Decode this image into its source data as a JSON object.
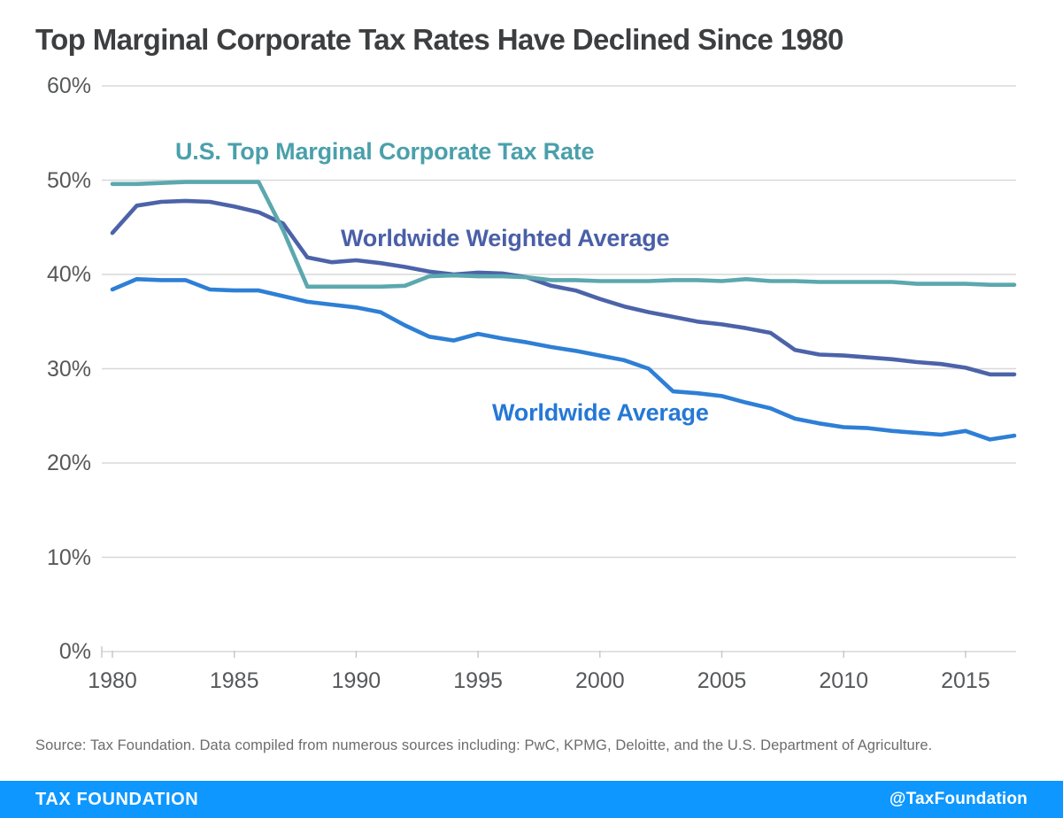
{
  "title": "Top Marginal Corporate Tax Rates Have Declined Since 1980",
  "source_note": "Source: Tax Foundation. Data compiled from numerous sources including: PwC, KPMG, Deloitte, and the U.S. Department of Agriculture.",
  "footer": {
    "brand": "TAX FOUNDATION",
    "handle": "@TaxFoundation",
    "bg_color": "#0d97ff",
    "text_color": "#ffffff"
  },
  "colors": {
    "title_text": "#3d3e40",
    "axis_text": "#57585a",
    "gridline": "#d8d8d8",
    "tick": "#c4c6c8",
    "us_line": "#5ba8ae",
    "us_label": "#4aa0ab",
    "weighted_line": "#4c63a9",
    "weighted_label": "#4a5fa8",
    "average_line": "#2e7fd5",
    "average_label": "#2578d5"
  },
  "chart_data": {
    "type": "line",
    "title": "Top Marginal Corporate Tax Rates Have Declined Since 1980",
    "xlabel": "",
    "ylabel": "",
    "xlim": [
      1980,
      2017
    ],
    "ylim": [
      0,
      60
    ],
    "grid": "horizontal",
    "legend": "inline-annotations",
    "x_ticks": [
      1980,
      1985,
      1990,
      1995,
      2000,
      2005,
      2010,
      2015
    ],
    "y_ticks": [
      {
        "value": 60,
        "label": "60%"
      },
      {
        "value": 50,
        "label": "50%"
      },
      {
        "value": 40,
        "label": "40%"
      },
      {
        "value": 30,
        "label": "30%"
      },
      {
        "value": 20,
        "label": "20%"
      },
      {
        "value": 10,
        "label": "10%"
      },
      {
        "value": 0,
        "label": "0%"
      }
    ],
    "x": [
      1980,
      1981,
      1982,
      1983,
      1984,
      1985,
      1986,
      1987,
      1988,
      1989,
      1990,
      1991,
      1992,
      1993,
      1994,
      1995,
      1996,
      1997,
      1998,
      1999,
      2000,
      2001,
      2002,
      2003,
      2004,
      2005,
      2006,
      2007,
      2008,
      2009,
      2010,
      2011,
      2012,
      2013,
      2014,
      2015,
      2016,
      2017
    ],
    "series": [
      {
        "name": "U.S. Top Marginal Corporate Tax Rate",
        "color": "#5ba8ae",
        "values": [
          49.6,
          49.6,
          49.7,
          49.8,
          49.8,
          49.8,
          49.8,
          44.7,
          38.7,
          38.7,
          38.7,
          38.7,
          38.8,
          39.8,
          39.9,
          39.8,
          39.8,
          39.7,
          39.4,
          39.4,
          39.3,
          39.3,
          39.3,
          39.4,
          39.4,
          39.3,
          39.5,
          39.3,
          39.3,
          39.2,
          39.2,
          39.2,
          39.2,
          39.0,
          39.0,
          39.0,
          38.9,
          38.9
        ]
      },
      {
        "name": "Worldwide Weighted Average",
        "color": "#4c63a9",
        "values": [
          44.4,
          47.3,
          47.7,
          47.8,
          47.7,
          47.2,
          46.6,
          45.4,
          41.8,
          41.3,
          41.5,
          41.2,
          40.8,
          40.3,
          40.0,
          40.2,
          40.1,
          39.7,
          38.8,
          38.3,
          37.4,
          36.6,
          36.0,
          35.5,
          35.0,
          34.7,
          34.3,
          33.8,
          32.0,
          31.5,
          31.4,
          31.2,
          31.0,
          30.7,
          30.5,
          30.1,
          29.4,
          29.4
        ]
      },
      {
        "name": "Worldwide Average",
        "color": "#2e7fd5",
        "values": [
          38.4,
          39.5,
          39.4,
          39.4,
          38.4,
          38.3,
          38.3,
          37.7,
          37.1,
          36.8,
          36.5,
          36.0,
          34.6,
          33.4,
          33.0,
          33.7,
          33.2,
          32.8,
          32.3,
          31.9,
          31.4,
          30.9,
          30.0,
          27.6,
          27.4,
          27.1,
          26.4,
          25.8,
          24.7,
          24.2,
          23.8,
          23.7,
          23.4,
          23.2,
          23.0,
          23.4,
          22.5,
          22.9
        ]
      }
    ]
  }
}
